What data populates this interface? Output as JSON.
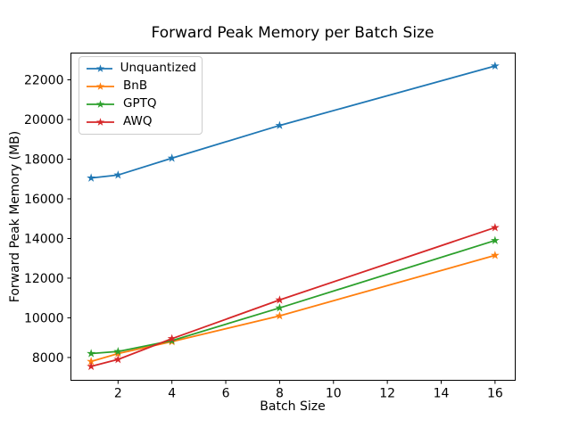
{
  "figure": {
    "title": "Forward Peak Memory per Batch Size",
    "xlabel": "Batch Size",
    "ylabel": "Forward Peak Memory (MB)"
  },
  "chart_data": {
    "type": "line",
    "title": "Forward Peak Memory per Batch Size",
    "xlabel": "Batch Size",
    "ylabel": "Forward Peak Memory (MB)",
    "x": [
      1,
      2,
      4,
      8,
      16
    ],
    "series": [
      {
        "name": "Unquantized",
        "color": "#1f77b4",
        "marker": "star",
        "values": [
          17050,
          17200,
          18050,
          19700,
          22700
        ]
      },
      {
        "name": "BnB",
        "color": "#ff7f0e",
        "marker": "star",
        "values": [
          7800,
          8200,
          8800,
          10100,
          13150
        ]
      },
      {
        "name": "GPTQ",
        "color": "#2ca02c",
        "marker": "star",
        "values": [
          8200,
          8300,
          8850,
          10500,
          13900
        ]
      },
      {
        "name": "AWQ",
        "color": "#d62728",
        "marker": "star",
        "values": [
          7550,
          7900,
          8950,
          10900,
          14550
        ]
      }
    ],
    "xticks": [
      2,
      4,
      6,
      8,
      10,
      12,
      14,
      16
    ],
    "yticks": [
      8000,
      10000,
      12000,
      14000,
      16000,
      18000,
      20000,
      22000
    ],
    "xlim": [
      0.25,
      16.75
    ],
    "ylim": [
      6850,
      23350
    ],
    "grid": false,
    "legend_position": "upper left",
    "axis_color": "#000000",
    "background_color": "#ffffff"
  }
}
